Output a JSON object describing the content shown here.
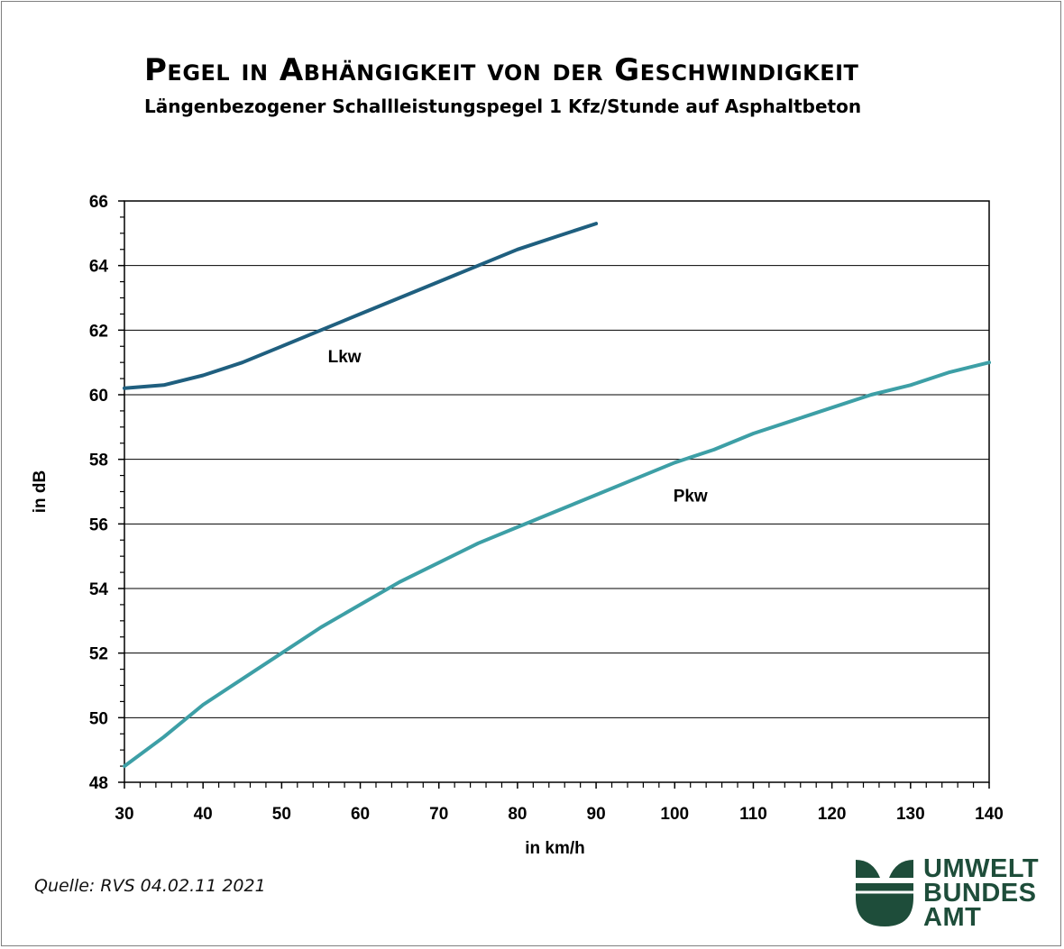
{
  "chart_data": {
    "type": "line",
    "title": "Pegel in Abhängigkeit von der Geschwindigkeit",
    "subtitle": "Längenbezogener Schallleistungspegel 1 Kfz/Stunde auf Asphaltbeton",
    "xlabel": "in km/h",
    "ylabel": "in dB",
    "xlim": [
      30,
      140
    ],
    "ylim": [
      48,
      66
    ],
    "xticks": [
      30,
      40,
      50,
      60,
      70,
      80,
      90,
      100,
      110,
      120,
      130,
      140
    ],
    "yticks": [
      48,
      50,
      52,
      54,
      56,
      58,
      60,
      62,
      64,
      66
    ],
    "grid": "horizontal",
    "legend": "none",
    "series": [
      {
        "name": "Lkw",
        "color": "#1f5f7f",
        "x": [
          30,
          35,
          40,
          45,
          50,
          55,
          60,
          65,
          70,
          75,
          80,
          85,
          90
        ],
        "y": [
          60.2,
          60.3,
          60.6,
          61.0,
          61.5,
          62.0,
          62.5,
          63.0,
          63.5,
          64.0,
          64.5,
          64.9,
          65.3
        ]
      },
      {
        "name": "Pkw",
        "color": "#3d9fa6",
        "x": [
          30,
          35,
          40,
          45,
          50,
          55,
          60,
          65,
          70,
          75,
          80,
          85,
          90,
          95,
          100,
          105,
          110,
          115,
          120,
          125,
          130,
          135,
          140
        ],
        "y": [
          48.5,
          49.4,
          50.4,
          51.2,
          52.0,
          52.8,
          53.5,
          54.2,
          54.8,
          55.4,
          55.9,
          56.4,
          56.9,
          57.4,
          57.9,
          58.3,
          58.8,
          59.2,
          59.6,
          60.0,
          60.3,
          60.7,
          61.0
        ]
      }
    ],
    "annotations": [
      {
        "text": "Lkw",
        "x": 58,
        "y": 61.0
      },
      {
        "text": "Pkw",
        "x": 102,
        "y": 56.7
      }
    ]
  },
  "source": "Quelle: RVS 04.02.11 2021",
  "logo": {
    "lines": [
      "UMWELT",
      "BUNDES",
      "AMT"
    ],
    "color": "#1e4d3a"
  }
}
